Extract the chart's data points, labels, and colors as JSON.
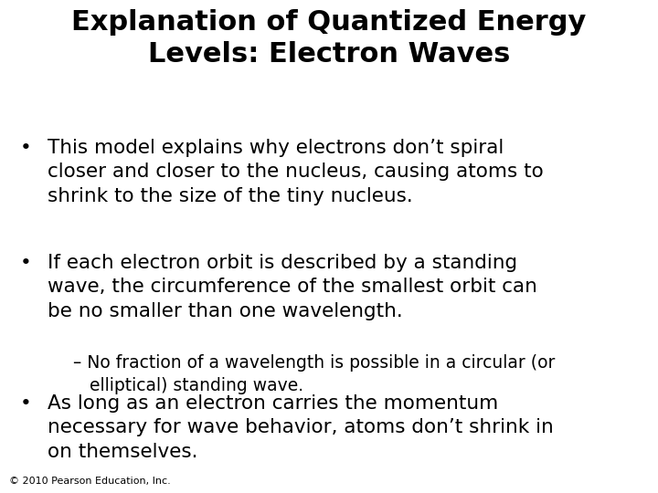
{
  "title_line1": "Explanation of Quantized Energy",
  "title_line2": "Levels: Electron Waves",
  "title_fontsize": 22,
  "title_fontweight": "bold",
  "background_color": "#ffffff",
  "text_color": "#000000",
  "bullet1": "This model explains why electrons don’t spiral\ncloser and closer to the nucleus, causing atoms to\nshrink to the size of the tiny nucleus.",
  "bullet2": "If each electron orbit is described by a standing\nwave, the circumference of the smallest orbit can\nbe no smaller than one wavelength.",
  "sub_bullet": "– No fraction of a wavelength is possible in a circular (or\n   elliptical) standing wave.",
  "bullet3": "As long as an electron carries the momentum\nnecessary for wave behavior, atoms don’t shrink in\non themselves.",
  "footer": "© 2010 Pearson Education, Inc.",
  "bullet_fontsize": 15.5,
  "sub_bullet_fontsize": 13.5,
  "footer_fontsize": 8,
  "bullet_symbol": "•",
  "fig_width": 7.2,
  "fig_height": 5.4,
  "dpi": 100
}
